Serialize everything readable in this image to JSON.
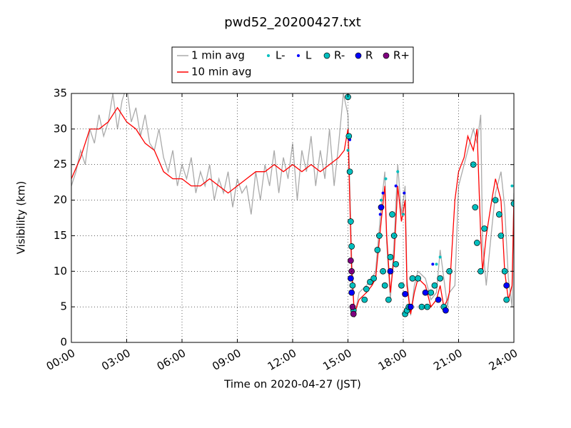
{
  "chart_data": {
    "type": "line",
    "title": "pwd52_20200427.txt",
    "x_label": "Time on 2020-04-27 (JST)",
    "y_label": "Visibility (km)",
    "xlim": [
      0,
      24
    ],
    "ylim": [
      0,
      35
    ],
    "xticks": [
      {
        "value": 0,
        "label": "00:00"
      },
      {
        "value": 3,
        "label": "03:00"
      },
      {
        "value": 6,
        "label": "06:00"
      },
      {
        "value": 9,
        "label": "09:00"
      },
      {
        "value": 12,
        "label": "12:00"
      },
      {
        "value": 15,
        "label": "15:00"
      },
      {
        "value": 18,
        "label": "18:00"
      },
      {
        "value": 21,
        "label": "21:00"
      },
      {
        "value": 24,
        "label": "24:00"
      }
    ],
    "yticks": [
      0,
      5,
      10,
      15,
      20,
      25,
      30,
      35
    ],
    "grid": true,
    "legend": "upper center",
    "series": [
      {
        "name": "1 min avg",
        "kind": "line",
        "color": "#aaaaaa",
        "x": [
          0,
          0.25,
          0.5,
          0.75,
          1,
          1.25,
          1.5,
          1.75,
          2,
          2.25,
          2.5,
          2.75,
          3,
          3.25,
          3.5,
          3.75,
          4,
          4.25,
          4.5,
          4.75,
          5,
          5.25,
          5.5,
          5.75,
          6,
          6.25,
          6.5,
          6.75,
          7,
          7.25,
          7.5,
          7.75,
          8,
          8.25,
          8.5,
          8.75,
          9,
          9.25,
          9.5,
          9.75,
          10,
          10.25,
          10.5,
          10.75,
          11,
          11.25,
          11.5,
          11.75,
          12,
          12.25,
          12.5,
          12.75,
          13,
          13.25,
          13.5,
          13.75,
          14,
          14.25,
          14.5,
          14.75,
          15,
          15.2,
          15.35,
          15.6,
          16,
          16.3,
          16.5,
          16.8,
          17,
          17.1,
          17.3,
          17.5,
          17.7,
          17.9,
          18.1,
          18.2,
          18.4,
          18.6,
          18.8,
          19.2,
          19.5,
          19.8,
          20,
          20.2,
          20.4,
          20.5,
          20.8,
          21,
          21.3,
          21.5,
          21.8,
          22,
          22.2,
          22.3,
          22.5,
          22.8,
          23,
          23.3,
          23.5,
          23.7,
          23.9,
          24
        ],
        "values": [
          22,
          24,
          27,
          25,
          30,
          28,
          32,
          29,
          31,
          35,
          30,
          34,
          36,
          31,
          33,
          29,
          32,
          28,
          27,
          30,
          26,
          24,
          27,
          22,
          25,
          23,
          26,
          21,
          24,
          22,
          25,
          20,
          23,
          21,
          24,
          19,
          23,
          21,
          22,
          18,
          24,
          20,
          25,
          22,
          27,
          21,
          26,
          23,
          28,
          20,
          27,
          24,
          29,
          22,
          27,
          23,
          30,
          22,
          28,
          35,
          32,
          12,
          3.5,
          7,
          8,
          9,
          10,
          19,
          24,
          14,
          6,
          14,
          25,
          18,
          22,
          9,
          3.8,
          8,
          10,
          9,
          6,
          7,
          13,
          9,
          5,
          7,
          8,
          22,
          25,
          27,
          30,
          28,
          32,
          14,
          8,
          16,
          21,
          24,
          19,
          9,
          5,
          21
        ]
      },
      {
        "name": "10 min avg",
        "kind": "line",
        "color": "#ff0000",
        "x": [
          0,
          0.5,
          1,
          1.5,
          2,
          2.5,
          3,
          3.5,
          4,
          4.5,
          5,
          5.5,
          6,
          6.5,
          7,
          7.5,
          8,
          8.5,
          9,
          9.5,
          10,
          10.5,
          11,
          11.5,
          12,
          12.5,
          13,
          13.5,
          14,
          14.5,
          14.8,
          15,
          15.2,
          15.35,
          15.6,
          16,
          16.3,
          16.5,
          16.8,
          17,
          17.1,
          17.3,
          17.5,
          17.7,
          17.9,
          18.1,
          18.2,
          18.4,
          18.6,
          18.8,
          19.2,
          19.5,
          19.8,
          20,
          20.2,
          20.4,
          20.5,
          20.8,
          21,
          21.3,
          21.5,
          21.8,
          22,
          22.2,
          22.3,
          22.5,
          22.8,
          23,
          23.3,
          23.5,
          23.7,
          23.9,
          24
        ],
        "values": [
          23,
          26,
          30,
          30,
          31,
          33,
          31,
          30,
          28,
          27,
          24,
          23,
          23,
          22,
          22,
          23,
          22,
          21,
          22,
          23,
          24,
          24,
          25,
          24,
          25,
          24,
          25,
          24,
          25,
          26,
          27,
          30,
          10,
          4,
          6,
          7,
          8,
          9,
          17,
          22,
          15,
          7,
          12,
          22,
          17,
          20,
          8,
          4,
          7,
          9,
          8,
          5,
          6,
          8,
          5,
          6,
          7,
          20,
          24,
          26,
          29,
          27,
          30,
          15,
          10,
          15,
          20,
          23,
          20,
          10,
          6,
          8,
          20
        ]
      },
      {
        "name": "L-",
        "kind": "scatter",
        "size": 2,
        "color": "#00bfbf",
        "x": [
          15.0,
          16.8,
          17.05,
          17.7,
          18.0,
          19.8,
          20.0,
          23.9
        ],
        "values": [
          27,
          20,
          23,
          24,
          18,
          11,
          12,
          22
        ]
      },
      {
        "name": "L",
        "kind": "scatter",
        "size": 2,
        "color": "#0000ff",
        "x": [
          15.1,
          16.75,
          16.9,
          17.6,
          18.05,
          19.6
        ],
        "values": [
          28.5,
          18,
          21,
          22,
          21,
          11
        ]
      },
      {
        "name": "R-",
        "kind": "scatter",
        "size": 4,
        "color": "#00bfbf",
        "x": [
          15.0,
          15.05,
          15.1,
          15.15,
          15.2,
          15.25,
          15.3,
          15.9,
          16.0,
          16.2,
          16.4,
          16.6,
          16.7,
          16.9,
          17.0,
          17.2,
          17.3,
          17.4,
          17.5,
          17.6,
          17.9,
          18.1,
          18.2,
          18.3,
          18.5,
          18.8,
          19.0,
          19.3,
          19.5,
          19.7,
          20.0,
          20.2,
          20.5,
          21.8,
          21.9,
          22.0,
          22.2,
          22.4,
          23.0,
          23.2,
          23.3,
          23.5,
          23.6,
          24.0
        ],
        "values": [
          34.5,
          29,
          24,
          17,
          13.5,
          8,
          4.5,
          6,
          7.5,
          8.5,
          9,
          13,
          15,
          10,
          8,
          6,
          12,
          18,
          15,
          11,
          8,
          4,
          4.5,
          5,
          9,
          9,
          5,
          5,
          7,
          8,
          9,
          5,
          10,
          25,
          19,
          14,
          10,
          16,
          20,
          18,
          15,
          10,
          6,
          19.5
        ]
      },
      {
        "name": "R",
        "kind": "scatter",
        "size": 4,
        "color": "#0000ff",
        "x": [
          15.15,
          15.2,
          16.8,
          17.3,
          18.1,
          18.4,
          19.2,
          19.9,
          20.3,
          23.6
        ],
        "values": [
          9,
          7,
          19,
          10,
          6.8,
          5,
          7,
          6,
          4.5,
          8
        ]
      },
      {
        "name": "R+",
        "kind": "scatter",
        "size": 4,
        "color": "#800080",
        "x": [
          15.15,
          15.2,
          15.25,
          15.3
        ],
        "values": [
          11.5,
          10,
          5,
          4
        ]
      }
    ]
  }
}
